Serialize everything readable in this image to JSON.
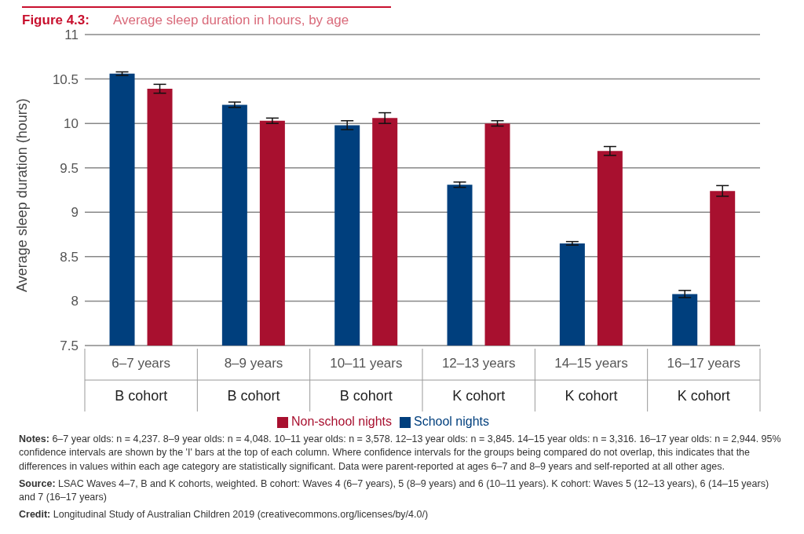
{
  "chart_data": {
    "type": "bar",
    "title": "Figure 4.3:",
    "subtitle": "Average sleep duration in hours, by age",
    "ylabel": "Average sleep duration (hours)",
    "categories": [
      "6–7 years\nB cohort",
      "8–9 years\nB cohort",
      "10–11 years\nB cohort",
      "12–13 years\nK cohort",
      "14–15 years\nK cohort",
      "16–17 years\nK cohort"
    ],
    "series": [
      {
        "name": "School nights",
        "color": "#003f7d",
        "values": [
          10.56,
          10.21,
          9.98,
          9.31,
          8.65,
          8.08
        ],
        "errors": [
          0.02,
          0.03,
          0.05,
          0.03,
          0.02,
          0.04
        ]
      },
      {
        "name": "Non-school nights",
        "color": "#a8102f",
        "values": [
          10.39,
          10.03,
          10.06,
          10.0,
          9.69,
          9.24
        ],
        "errors": [
          0.05,
          0.03,
          0.06,
          0.03,
          0.05,
          0.06
        ]
      }
    ],
    "ylim": [
      7.5,
      11
    ],
    "yticks": [
      7.5,
      8,
      8.5,
      9,
      9.5,
      10,
      10.5,
      11
    ],
    "grid": "y",
    "legend": "bottom",
    "annotations": [
      "Notes: 6–7 year olds: n = 4,237. 8–9 year olds: n = 4,048. 10–11 year olds: n = 3,578. 12–13 year olds: n = 3,845. 14–15 year olds: n = 3,316. 16–17 year olds: n = 2,944. 95% confidence intervals are shown by the 'I' bars at the top of each column. Where confidence intervals for the groups being compared do not overlap, this indicates that the differences in values within each age category are statistically significant. Data were parent-reported at ages 6–7 and 8–9 years and self-reported at all other ages.",
      "Source: LSAC Waves 4–7, B and K cohorts, weighted. B cohort: Waves 4 (6–7 years), 5 (8–9 years) and 6 (10–11 years). K cohort: Waves 5 (12–13 years), 6 (14–15 years) and 7 (16–17 years)",
      "Credit: Longitudinal Study of Australian Children 2019 (creativecommons.org/licenses/by/4.0/)"
    ]
  }
}
